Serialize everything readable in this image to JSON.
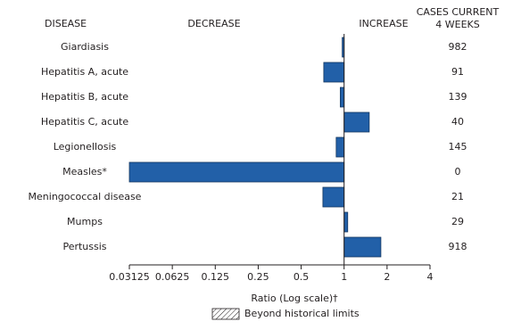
{
  "chart_data": {
    "type": "bar",
    "orientation": "horizontal",
    "xscale": "log",
    "baseline": 1,
    "headers": {
      "disease": "DISEASE",
      "decrease": "DECREASE",
      "increase": "INCREASE",
      "cases": [
        "CASES CURRENT",
        "4 WEEKS"
      ]
    },
    "categories": [
      "Giardiasis",
      "Hepatitis A, acute",
      "Hepatitis B, acute",
      "Hepatitis C, acute",
      "Legionellosis",
      "Measles*",
      "Meningococcal disease",
      "Mumps",
      "Pertussis"
    ],
    "values": [
      0.97,
      0.72,
      0.94,
      1.5,
      0.88,
      0.03125,
      0.71,
      1.06,
      1.81
    ],
    "cases": [
      982,
      91,
      139,
      40,
      145,
      0,
      21,
      29,
      918
    ],
    "color": "#2260a8",
    "xlim": [
      0.03125,
      4
    ],
    "xticks": [
      0.03125,
      0.0625,
      0.125,
      0.25,
      0.5,
      1,
      2,
      4
    ],
    "xlabel": "Ratio (Log scale)†",
    "legend": "Beyond historical limits"
  }
}
